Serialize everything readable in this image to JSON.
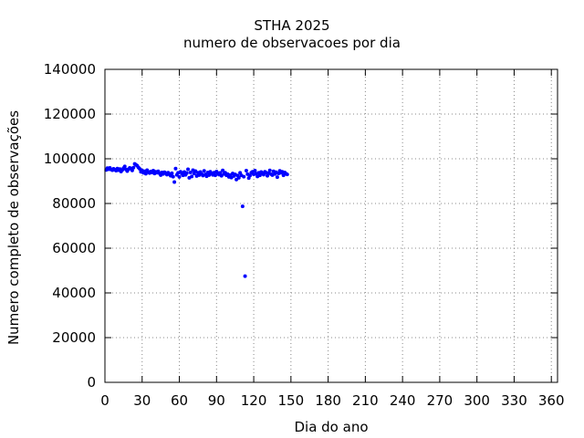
{
  "chart_data": {
    "type": "scatter",
    "title": "STHA 2025",
    "subtitle": "numero de observacoes por dia",
    "xlabel": "Dia do ano",
    "ylabel": "Numero completo de observações",
    "xlim": [
      0,
      365
    ],
    "ylim": [
      0,
      140000
    ],
    "xticks": [
      0,
      30,
      60,
      90,
      120,
      150,
      180,
      210,
      240,
      270,
      300,
      330,
      360
    ],
    "yticks": [
      0,
      20000,
      40000,
      60000,
      80000,
      100000,
      120000,
      140000
    ],
    "grid": true,
    "marker_color": "#0000ff",
    "series": [
      {
        "points": [
          [
            1,
            95000
          ],
          [
            2,
            95800
          ],
          [
            3,
            95300
          ],
          [
            4,
            95900
          ],
          [
            5,
            95200
          ],
          [
            6,
            94900
          ],
          [
            7,
            95500
          ],
          [
            8,
            95100
          ],
          [
            9,
            94700
          ],
          [
            10,
            95600
          ],
          [
            11,
            94900
          ],
          [
            12,
            95400
          ],
          [
            13,
            94300
          ],
          [
            14,
            95000
          ],
          [
            15,
            95800
          ],
          [
            16,
            96600
          ],
          [
            17,
            95200
          ],
          [
            18,
            94500
          ],
          [
            19,
            95300
          ],
          [
            20,
            95900
          ],
          [
            21,
            95600
          ],
          [
            22,
            94800
          ],
          [
            23,
            96000
          ],
          [
            24,
            97700
          ],
          [
            25,
            97300
          ],
          [
            26,
            96900
          ],
          [
            27,
            96100
          ],
          [
            28,
            95500
          ],
          [
            29,
            94200
          ],
          [
            30,
            94800
          ],
          [
            31,
            93700
          ],
          [
            32,
            94400
          ],
          [
            33,
            93300
          ],
          [
            34,
            94900
          ],
          [
            35,
            94100
          ],
          [
            36,
            93600
          ],
          [
            37,
            94300
          ],
          [
            38,
            93900
          ],
          [
            39,
            94700
          ],
          [
            40,
            93400
          ],
          [
            41,
            94200
          ],
          [
            42,
            93800
          ],
          [
            43,
            94400
          ],
          [
            44,
            93500
          ],
          [
            45,
            92700
          ],
          [
            46,
            93900
          ],
          [
            47,
            93200
          ],
          [
            48,
            94000
          ],
          [
            49,
            93600
          ],
          [
            50,
            92900
          ],
          [
            51,
            93800
          ],
          [
            52,
            93100
          ],
          [
            53,
            92400
          ],
          [
            54,
            93500
          ],
          [
            55,
            92000
          ],
          [
            56,
            89600
          ],
          [
            57,
            95600
          ],
          [
            58,
            92800
          ],
          [
            59,
            93700
          ],
          [
            60,
            91900
          ],
          [
            61,
            94200
          ],
          [
            62,
            93300
          ],
          [
            63,
            92600
          ],
          [
            64,
            94100
          ],
          [
            65,
            92800
          ],
          [
            66,
            93600
          ],
          [
            67,
            95300
          ],
          [
            68,
            91500
          ],
          [
            69,
            93900
          ],
          [
            70,
            92100
          ],
          [
            71,
            94900
          ],
          [
            72,
            93400
          ],
          [
            73,
            94500
          ],
          [
            74,
            92300
          ],
          [
            75,
            93800
          ],
          [
            76,
            92700
          ],
          [
            77,
            94100
          ],
          [
            78,
            93200
          ],
          [
            79,
            92500
          ],
          [
            80,
            94600
          ],
          [
            81,
            93000
          ],
          [
            82,
            92200
          ],
          [
            83,
            93900
          ],
          [
            84,
            92700
          ],
          [
            85,
            94200
          ],
          [
            86,
            93400
          ],
          [
            87,
            92800
          ],
          [
            88,
            93800
          ],
          [
            89,
            92600
          ],
          [
            90,
            94300
          ],
          [
            91,
            93600
          ],
          [
            92,
            92900
          ],
          [
            93,
            93700
          ],
          [
            94,
            92400
          ],
          [
            95,
            94800
          ],
          [
            96,
            93200
          ],
          [
            97,
            93800
          ],
          [
            98,
            92600
          ],
          [
            99,
            93100
          ],
          [
            100,
            91900
          ],
          [
            101,
            92700
          ],
          [
            102,
            91600
          ],
          [
            103,
            93400
          ],
          [
            104,
            92300
          ],
          [
            105,
            93000
          ],
          [
            106,
            90700
          ],
          [
            107,
            92500
          ],
          [
            108,
            91500
          ],
          [
            109,
            93700
          ],
          [
            110,
            92600
          ],
          [
            111,
            78700
          ],
          [
            112,
            92000
          ],
          [
            113,
            47500
          ],
          [
            114,
            94700
          ],
          [
            115,
            93100
          ],
          [
            116,
            91400
          ],
          [
            117,
            92500
          ],
          [
            118,
            93800
          ],
          [
            119,
            94200
          ],
          [
            120,
            93000
          ],
          [
            121,
            94700
          ],
          [
            122,
            93300
          ],
          [
            123,
            92100
          ],
          [
            124,
            93700
          ],
          [
            125,
            92600
          ],
          [
            126,
            94100
          ],
          [
            127,
            93500
          ],
          [
            128,
            92900
          ],
          [
            129,
            94200
          ],
          [
            130,
            93800
          ],
          [
            131,
            92400
          ],
          [
            132,
            93600
          ],
          [
            133,
            94800
          ],
          [
            134,
            93100
          ],
          [
            135,
            92700
          ],
          [
            136,
            94400
          ],
          [
            137,
            93200
          ],
          [
            138,
            94000
          ],
          [
            139,
            91800
          ],
          [
            140,
            93400
          ],
          [
            141,
            94600
          ],
          [
            142,
            93700
          ],
          [
            143,
            94200
          ],
          [
            144,
            92600
          ],
          [
            145,
            93900
          ],
          [
            146,
            93300
          ],
          [
            147,
            93000
          ]
        ]
      }
    ]
  }
}
